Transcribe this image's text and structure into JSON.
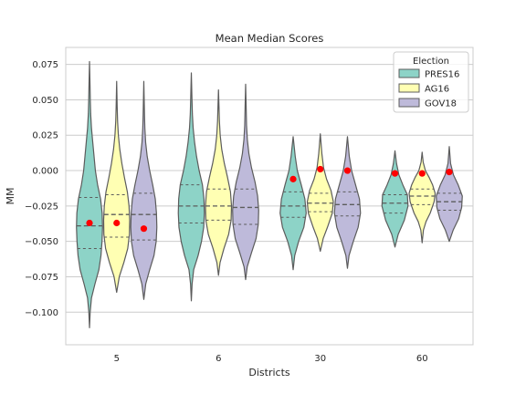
{
  "chart_data": {
    "type": "violin",
    "title": "Mean Median Scores",
    "xlabel": "Districts",
    "ylabel": "MM",
    "ylim": [
      -0.123,
      0.087
    ],
    "yticks": [
      -0.1,
      -0.075,
      -0.05,
      -0.025,
      0.0,
      0.025,
      0.05,
      0.075
    ],
    "ytick_labels": [
      "−0.100",
      "−0.075",
      "−0.050",
      "−0.025",
      "0.000",
      "0.025",
      "0.050",
      "0.075"
    ],
    "categories": [
      "5",
      "6",
      "30",
      "60"
    ],
    "grid": "horizontal",
    "legend": {
      "title": "Election",
      "position": "top-right"
    },
    "series": [
      {
        "name": "PRES16",
        "color": "#8dd3c7",
        "violins": [
          {
            "min": -0.111,
            "max": 0.077,
            "q1": -0.055,
            "median": -0.039,
            "q3": -0.019,
            "mean": -0.037,
            "profile": [
              [
                -0.111,
                0.0
              ],
              [
                -0.1,
                0.05
              ],
              [
                -0.09,
                0.15
              ],
              [
                -0.08,
                0.42
              ],
              [
                -0.07,
                0.72
              ],
              [
                -0.06,
                0.88
              ],
              [
                -0.05,
                0.96
              ],
              [
                -0.04,
                1.0
              ],
              [
                -0.03,
                0.97
              ],
              [
                -0.02,
                0.85
              ],
              [
                -0.01,
                0.62
              ],
              [
                0.0,
                0.45
              ],
              [
                0.01,
                0.35
              ],
              [
                0.02,
                0.25
              ],
              [
                0.03,
                0.15
              ],
              [
                0.04,
                0.09
              ],
              [
                0.05,
                0.06
              ],
              [
                0.06,
                0.04
              ],
              [
                0.077,
                0.0
              ]
            ]
          },
          {
            "min": -0.092,
            "max": 0.069,
            "q1": -0.037,
            "median": -0.025,
            "q3": -0.01,
            "mean": null,
            "profile": [
              [
                -0.092,
                0.0
              ],
              [
                -0.08,
                0.06
              ],
              [
                -0.07,
                0.18
              ],
              [
                -0.06,
                0.52
              ],
              [
                -0.05,
                0.78
              ],
              [
                -0.04,
                0.95
              ],
              [
                -0.03,
                1.0
              ],
              [
                -0.02,
                0.97
              ],
              [
                -0.01,
                0.85
              ],
              [
                0.0,
                0.6
              ],
              [
                0.01,
                0.4
              ],
              [
                0.02,
                0.25
              ],
              [
                0.03,
                0.14
              ],
              [
                0.04,
                0.08
              ],
              [
                0.05,
                0.05
              ],
              [
                0.069,
                0.0
              ]
            ]
          },
          {
            "min": -0.07,
            "max": 0.024,
            "q1": -0.033,
            "median": -0.025,
            "q3": -0.015,
            "mean": -0.006,
            "profile": [
              [
                -0.07,
                0.0
              ],
              [
                -0.06,
                0.12
              ],
              [
                -0.05,
                0.42
              ],
              [
                -0.04,
                0.82
              ],
              [
                -0.03,
                1.0
              ],
              [
                -0.02,
                0.9
              ],
              [
                -0.01,
                0.62
              ],
              [
                0.0,
                0.32
              ],
              [
                0.01,
                0.16
              ],
              [
                0.024,
                0.0
              ]
            ]
          },
          {
            "min": -0.054,
            "max": 0.014,
            "q1": -0.03,
            "median": -0.023,
            "q3": -0.017,
            "mean": -0.002,
            "profile": [
              [
                -0.054,
                0.0
              ],
              [
                -0.045,
                0.25
              ],
              [
                -0.035,
                0.72
              ],
              [
                -0.025,
                1.0
              ],
              [
                -0.017,
                0.95
              ],
              [
                -0.01,
                0.6
              ],
              [
                -0.003,
                0.3
              ],
              [
                0.005,
                0.12
              ],
              [
                0.014,
                0.0
              ]
            ]
          }
        ]
      },
      {
        "name": "AG16",
        "color": "#ffffb3",
        "violins": [
          {
            "min": -0.086,
            "max": 0.063,
            "q1": -0.047,
            "median": -0.031,
            "q3": -0.017,
            "mean": -0.037,
            "profile": [
              [
                -0.086,
                0.0
              ],
              [
                -0.075,
                0.2
              ],
              [
                -0.065,
                0.55
              ],
              [
                -0.055,
                0.85
              ],
              [
                -0.045,
                0.98
              ],
              [
                -0.035,
                1.0
              ],
              [
                -0.025,
                0.95
              ],
              [
                -0.015,
                0.82
              ],
              [
                -0.005,
                0.6
              ],
              [
                0.005,
                0.4
              ],
              [
                0.015,
                0.24
              ],
              [
                0.025,
                0.13
              ],
              [
                0.035,
                0.07
              ],
              [
                0.045,
                0.04
              ],
              [
                0.063,
                0.0
              ]
            ]
          },
          {
            "min": -0.074,
            "max": 0.057,
            "q1": -0.035,
            "median": -0.025,
            "q3": -0.013,
            "mean": null,
            "profile": [
              [
                -0.074,
                0.0
              ],
              [
                -0.065,
                0.12
              ],
              [
                -0.055,
                0.42
              ],
              [
                -0.045,
                0.78
              ],
              [
                -0.035,
                0.97
              ],
              [
                -0.025,
                1.0
              ],
              [
                -0.015,
                0.92
              ],
              [
                -0.005,
                0.7
              ],
              [
                0.005,
                0.45
              ],
              [
                0.015,
                0.25
              ],
              [
                0.025,
                0.13
              ],
              [
                0.035,
                0.07
              ],
              [
                0.045,
                0.04
              ],
              [
                0.057,
                0.0
              ]
            ]
          },
          {
            "min": -0.057,
            "max": 0.026,
            "q1": -0.029,
            "median": -0.023,
            "q3": -0.016,
            "mean": 0.001,
            "profile": [
              [
                -0.057,
                0.0
              ],
              [
                -0.048,
                0.22
              ],
              [
                -0.04,
                0.55
              ],
              [
                -0.03,
                0.92
              ],
              [
                -0.022,
                1.0
              ],
              [
                -0.014,
                0.82
              ],
              [
                -0.006,
                0.48
              ],
              [
                0.002,
                0.25
              ],
              [
                0.012,
                0.12
              ],
              [
                0.026,
                0.0
              ]
            ]
          },
          {
            "min": -0.051,
            "max": 0.013,
            "q1": -0.024,
            "median": -0.018,
            "q3": -0.013,
            "mean": -0.002,
            "profile": [
              [
                -0.051,
                0.0
              ],
              [
                -0.042,
                0.1
              ],
              [
                -0.036,
                0.3
              ],
              [
                -0.03,
                0.62
              ],
              [
                -0.022,
                0.92
              ],
              [
                -0.016,
                1.0
              ],
              [
                -0.01,
                0.8
              ],
              [
                -0.005,
                0.55
              ],
              [
                0.0,
                0.25
              ],
              [
                0.006,
                0.08
              ],
              [
                0.013,
                0.0
              ]
            ]
          }
        ]
      },
      {
        "name": "GOV18",
        "color": "#bebada",
        "violins": [
          {
            "min": -0.091,
            "max": 0.063,
            "q1": -0.049,
            "median": -0.031,
            "q3": -0.016,
            "mean": -0.041,
            "profile": [
              [
                -0.091,
                0.0
              ],
              [
                -0.08,
                0.15
              ],
              [
                -0.07,
                0.45
              ],
              [
                -0.06,
                0.78
              ],
              [
                -0.05,
                0.95
              ],
              [
                -0.04,
                1.0
              ],
              [
                -0.03,
                0.97
              ],
              [
                -0.02,
                0.88
              ],
              [
                -0.01,
                0.68
              ],
              [
                0.0,
                0.45
              ],
              [
                0.01,
                0.26
              ],
              [
                0.02,
                0.14
              ],
              [
                0.03,
                0.08
              ],
              [
                0.04,
                0.05
              ],
              [
                0.063,
                0.0
              ]
            ]
          },
          {
            "min": -0.077,
            "max": 0.061,
            "q1": -0.038,
            "median": -0.026,
            "q3": -0.013,
            "mean": null,
            "profile": [
              [
                -0.077,
                0.0
              ],
              [
                -0.068,
                0.12
              ],
              [
                -0.058,
                0.45
              ],
              [
                -0.048,
                0.8
              ],
              [
                -0.038,
                0.97
              ],
              [
                -0.028,
                1.0
              ],
              [
                -0.018,
                0.92
              ],
              [
                -0.008,
                0.72
              ],
              [
                0.002,
                0.45
              ],
              [
                0.012,
                0.25
              ],
              [
                0.022,
                0.13
              ],
              [
                0.032,
                0.07
              ],
              [
                0.045,
                0.04
              ],
              [
                0.061,
                0.0
              ]
            ]
          },
          {
            "min": -0.069,
            "max": 0.024,
            "q1": -0.032,
            "median": -0.024,
            "q3": -0.015,
            "mean": 0.0,
            "profile": [
              [
                -0.069,
                0.0
              ],
              [
                -0.06,
                0.12
              ],
              [
                -0.05,
                0.45
              ],
              [
                -0.04,
                0.82
              ],
              [
                -0.03,
                1.0
              ],
              [
                -0.02,
                0.92
              ],
              [
                -0.01,
                0.62
              ],
              [
                0.0,
                0.32
              ],
              [
                0.01,
                0.14
              ],
              [
                0.024,
                0.0
              ]
            ]
          },
          {
            "min": -0.05,
            "max": 0.017,
            "q1": -0.028,
            "median": -0.022,
            "q3": -0.016,
            "mean": -0.001,
            "profile": [
              [
                -0.05,
                0.0
              ],
              [
                -0.042,
                0.3
              ],
              [
                -0.034,
                0.72
              ],
              [
                -0.026,
                0.95
              ],
              [
                -0.018,
                1.0
              ],
              [
                -0.01,
                0.68
              ],
              [
                -0.003,
                0.32
              ],
              [
                0.005,
                0.1
              ],
              [
                0.017,
                0.0
              ]
            ]
          }
        ]
      }
    ]
  }
}
